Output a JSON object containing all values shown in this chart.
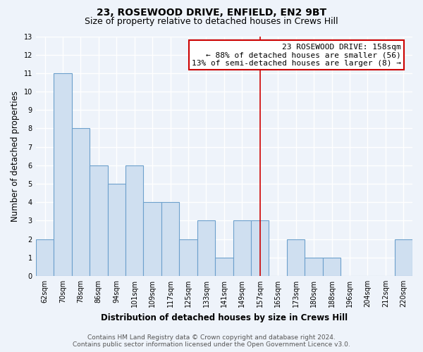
{
  "title": "23, ROSEWOOD DRIVE, ENFIELD, EN2 9BT",
  "subtitle": "Size of property relative to detached houses in Crews Hill",
  "xlabel": "Distribution of detached houses by size in Crews Hill",
  "ylabel": "Number of detached properties",
  "bin_labels": [
    "62sqm",
    "70sqm",
    "78sqm",
    "86sqm",
    "94sqm",
    "101sqm",
    "109sqm",
    "117sqm",
    "125sqm",
    "133sqm",
    "141sqm",
    "149sqm",
    "157sqm",
    "165sqm",
    "173sqm",
    "180sqm",
    "188sqm",
    "196sqm",
    "204sqm",
    "212sqm",
    "220sqm"
  ],
  "bar_heights": [
    2,
    11,
    8,
    6,
    5,
    6,
    4,
    4,
    2,
    3,
    1,
    3,
    3,
    0,
    2,
    1,
    1,
    0,
    0,
    0,
    2
  ],
  "bar_color": "#cfdff0",
  "bar_edge_color": "#6da0cc",
  "vline_x_idx": 12,
  "vline_color": "#cc0000",
  "property_label": "23 ROSEWOOD DRIVE: 158sqm",
  "annotation_line1": "← 88% of detached houses are smaller (56)",
  "annotation_line2": "13% of semi-detached houses are larger (8) →",
  "annotation_box_color": "#ffffff",
  "annotation_box_edge": "#cc0000",
  "ylim": [
    0,
    13
  ],
  "yticks": [
    0,
    1,
    2,
    3,
    4,
    5,
    6,
    7,
    8,
    9,
    10,
    11,
    12,
    13
  ],
  "footer_line1": "Contains HM Land Registry data © Crown copyright and database right 2024.",
  "footer_line2": "Contains public sector information licensed under the Open Government Licence v3.0.",
  "background_color": "#eef3fa",
  "grid_color": "#ffffff",
  "title_fontsize": 10,
  "subtitle_fontsize": 9,
  "axis_label_fontsize": 8.5,
  "tick_fontsize": 7,
  "annotation_fontsize": 8,
  "footer_fontsize": 6.5
}
